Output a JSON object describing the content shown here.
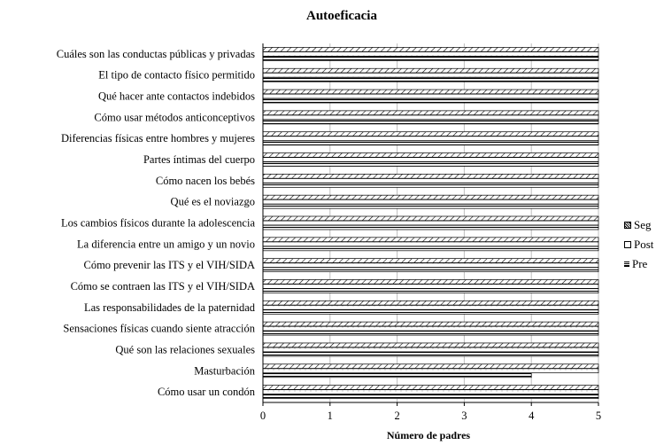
{
  "chart_data": {
    "type": "bar",
    "orientation": "horizontal",
    "title": "Autoeficacia",
    "xlabel": "Número de padres",
    "ylabel": "",
    "xlim": [
      0,
      5
    ],
    "x_ticks": [
      "0",
      "1",
      "2",
      "3",
      "4",
      "5"
    ],
    "grid": "vertical",
    "legend_position": "right",
    "categories": [
      "Cuáles son las conductas públicas y privadas",
      "El tipo de contacto físico permitido",
      "Qué hacer ante contactos indebidos",
      "Cómo usar métodos anticonceptivos",
      "Diferencias físicas entre hombres y mujeres",
      "Partes íntimas del cuerpo",
      "Cómo nacen los bebés",
      "Qué es el noviazgo",
      "Los cambios físicos durante la adolescencia",
      "La diferencia entre un amigo y un novio",
      "Cómo prevenir las ITS y el VIH/SIDA",
      "Cómo se contraen las ITS y el VIH/SIDA",
      "Las responsabilidades de la paternidad",
      "Sensaciones físicas cuando siente atracción",
      "Qué son las relaciones sexuales",
      "Masturbación",
      "Cómo usar un condón"
    ],
    "series": [
      {
        "name": "Seg",
        "values": [
          5,
          5,
          5,
          5,
          5,
          5,
          5,
          5,
          5,
          5,
          5,
          5,
          5,
          5,
          5,
          5,
          5
        ]
      },
      {
        "name": "Post",
        "values": [
          5,
          5,
          5,
          5,
          5,
          5,
          5,
          5,
          5,
          5,
          5,
          5,
          5,
          5,
          5,
          5,
          5
        ]
      },
      {
        "name": "Pre",
        "values": [
          5,
          5,
          5,
          5,
          5,
          5,
          5,
          5,
          5,
          5,
          5,
          5,
          5,
          5,
          5,
          4,
          5
        ]
      }
    ]
  }
}
